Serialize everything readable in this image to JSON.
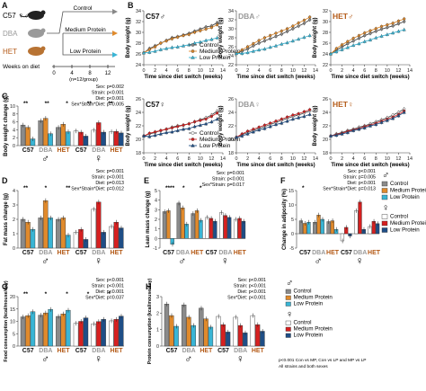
{
  "colors": {
    "control": "#8a8a8a",
    "control_female": "#ffffff",
    "medium": "#e08a2c",
    "medium_female": "#d62020",
    "low": "#39b5d5",
    "low_female": "#1f4e86",
    "c57_text": "#111111",
    "dba_text": "#9a9a9a",
    "het_text": "#b45a17",
    "c57_mouse": "#222222",
    "dba_mouse": "#9a9a9a",
    "het_mouse": "#b87333"
  },
  "panelA": {
    "letter": "A",
    "strains": [
      "C57",
      "DBA",
      "HET"
    ],
    "diets": [
      "Control",
      "Medium Protein",
      "Low Protein"
    ],
    "x_label": "Weeks on diet",
    "ticks": [
      "0",
      "4",
      "8",
      "12"
    ],
    "n_label": "(n=12/group)"
  },
  "panelB": {
    "letter": "B",
    "x_label": "Time since diet switch (weeks)",
    "y_label": "Body weight (g)",
    "legend": [
      "Control",
      "Medium Protein",
      "Low Protein"
    ],
    "x_ticks": [
      "0",
      "2",
      "4",
      "6",
      "8",
      "10",
      "12",
      "14"
    ],
    "subplots": [
      {
        "title": "C57♂",
        "title_color": "#111111",
        "ylim": [
          24,
          34
        ],
        "yticks": [
          "24",
          "26",
          "28",
          "30",
          "32",
          "34"
        ],
        "control": [
          26.2,
          27,
          27.5,
          28,
          28.5,
          29,
          29.2,
          29.5,
          29.8,
          30.2,
          30.6,
          31,
          31.2,
          31.8
        ],
        "medium": [
          26.2,
          26.8,
          27.3,
          28,
          28.4,
          28.8,
          29.1,
          29.4,
          29.6,
          30,
          30.3,
          30.6,
          30.9,
          31.4
        ],
        "low": [
          26.2,
          26.3,
          26.5,
          26.8,
          27,
          27.2,
          27.3,
          27.5,
          27.7,
          28,
          28.2,
          28.5,
          28.7,
          29
        ]
      },
      {
        "title": "DBA♂",
        "title_color": "#9a9a9a",
        "ylim": [
          22,
          34
        ],
        "yticks": [
          "22",
          "24",
          "26",
          "28",
          "30",
          "32",
          "34"
        ],
        "control": [
          24.5,
          25,
          25.5,
          26.2,
          26.8,
          27.3,
          27.8,
          28.3,
          28.8,
          29.4,
          30,
          30.6,
          31.2,
          32
        ],
        "medium": [
          24.5,
          25.3,
          26,
          26.7,
          27.4,
          28,
          28.5,
          29,
          29.5,
          30,
          30.6,
          31.3,
          31.9,
          32.6
        ],
        "low": [
          24.5,
          24.5,
          24.7,
          25,
          25.3,
          25.5,
          25.9,
          26.2,
          26.6,
          26.9,
          27.3,
          27.7,
          28.1,
          28.5
        ]
      },
      {
        "title": "HET♂",
        "title_color": "#b45a17",
        "ylim": [
          22,
          32
        ],
        "yticks": [
          "22",
          "24",
          "26",
          "28",
          "30",
          "32"
        ],
        "control": [
          24,
          24.7,
          25.3,
          25.9,
          26.4,
          26.9,
          27.4,
          27.8,
          28.2,
          28.6,
          28.9,
          29.2,
          29.6,
          30
        ],
        "medium": [
          24,
          25,
          25.7,
          26.3,
          26.9,
          27.4,
          27.9,
          28.3,
          28.7,
          29.1,
          29.4,
          29.7,
          30.1,
          30.5
        ],
        "low": [
          24,
          24.4,
          24.8,
          25.2,
          25.6,
          25.9,
          26.3,
          26.6,
          27,
          27.3,
          27.6,
          27.9,
          28.2,
          28.5
        ]
      },
      {
        "title": "C57♀",
        "title_color": "#111111",
        "ylim": [
          18,
          26
        ],
        "yticks": [
          "18",
          "20",
          "22",
          "24",
          "26"
        ],
        "control": [
          20.5,
          20.8,
          21,
          21.3,
          21.5,
          21.8,
          22,
          22.1,
          22.3,
          22.6,
          22.9,
          23.2,
          23.6,
          24.2
        ],
        "medium": [
          20.5,
          20.9,
          21.1,
          21.3,
          21.5,
          21.7,
          21.9,
          22.1,
          22.3,
          22.6,
          22.8,
          23,
          23.4,
          23.9
        ],
        "low": [
          20.5,
          20.4,
          20.6,
          20.8,
          21,
          21.1,
          21.3,
          21.5,
          21.6,
          21.9,
          22.1,
          22.3,
          22.6,
          23
        ]
      },
      {
        "title": "DBA♀",
        "title_color": "#9a9a9a",
        "ylim": [
          18,
          26
        ],
        "yticks": [
          "18",
          "20",
          "22",
          "24",
          "26"
        ],
        "control": [
          20.3,
          20.7,
          21,
          21.3,
          21.6,
          21.9,
          22.2,
          22.5,
          22.8,
          23.1,
          23.4,
          23.6,
          23.9,
          24.2
        ],
        "medium": [
          20.3,
          20.8,
          21.2,
          21.5,
          21.8,
          22.1,
          22.4,
          22.7,
          23,
          23.3,
          23.6,
          23.8,
          24.1,
          24.4
        ],
        "low": [
          20.3,
          20.5,
          20.8,
          21.1,
          21.4,
          21.6,
          21.9,
          22.2,
          22.4,
          22.7,
          23,
          23.2,
          23.4,
          23.7
        ]
      },
      {
        "title": "HET♀",
        "title_color": "#b45a17",
        "ylim": [
          18,
          26
        ],
        "yticks": [
          "18",
          "20",
          "22",
          "24",
          "26"
        ],
        "control": [
          20.5,
          20.8,
          21,
          21.3,
          21.5,
          21.8,
          22,
          22.3,
          22.6,
          22.9,
          23.2,
          23.6,
          24,
          24.5
        ],
        "medium": [
          20.5,
          20.7,
          20.9,
          21.2,
          21.4,
          21.6,
          21.9,
          22.1,
          22.4,
          22.7,
          23,
          23.3,
          23.7,
          24.2
        ],
        "low": [
          20.5,
          20.6,
          20.8,
          21,
          21.3,
          21.5,
          21.7,
          22,
          22.2,
          22.5,
          22.8,
          23.1,
          23.5,
          24
        ]
      }
    ]
  },
  "panelC": {
    "letter": "C",
    "y_label": "Body weight change (g)",
    "ylim": [
      0,
      10
    ],
    "yticks": [
      "0",
      "2",
      "4",
      "6",
      "8",
      "10"
    ],
    "stats": [
      "Sex: p=0.002",
      "Strain: p<0.001",
      "Diet: p<0.001",
      "Sex*Strain*Diet: p=0.005"
    ],
    "male": [
      [
        5.2,
        4.6,
        1.7
      ],
      [
        6.3,
        6.9,
        3.0
      ],
      [
        4.6,
        5.4,
        3.5
      ]
    ],
    "female": [
      [
        3.7,
        3.4,
        2.4
      ],
      [
        3.9,
        5.8,
        3.4
      ],
      [
        3.5,
        3.6,
        3.2
      ]
    ],
    "sig": [
      "**",
      "**",
      "*",
      "**",
      "**"
    ]
  },
  "panelD": {
    "letter": "D",
    "y_label": "Fat mass change (g)",
    "ylim": [
      0,
      4
    ],
    "yticks": [
      "0",
      "1",
      "2",
      "3",
      "4"
    ],
    "stats": [
      "Sex: p=0.001",
      "Strain: p<0.001",
      "Diet: p=0.013",
      "Sex*Strain*Diet: p=0.012"
    ],
    "male": [
      [
        2.0,
        1.8,
        1.3
      ],
      [
        2.1,
        3.3,
        2.1
      ],
      [
        2.0,
        2.1,
        0.9
      ]
    ],
    "female": [
      [
        1.1,
        1.3,
        0.6
      ],
      [
        2.7,
        3.2,
        1.1
      ],
      [
        1.5,
        1.8,
        1.4
      ]
    ],
    "sig": [
      "**",
      "*",
      "**"
    ]
  },
  "panelE": {
    "letter": "E",
    "y_label": "Lean mass change (g)",
    "ylim": [
      -1,
      5
    ],
    "yticks": [
      "-1",
      "0",
      "1",
      "2",
      "3",
      "4",
      "5"
    ],
    "stats": [
      "Sex: p=0.001",
      "Strain: p<0.001",
      "Sex*Strain: p=0.017"
    ],
    "male": [
      [
        2.8,
        2.9,
        -0.6
      ],
      [
        3.7,
        3.2,
        1.5
      ],
      [
        2.6,
        2.9,
        1.9
      ]
    ],
    "female": [
      [
        2.2,
        2.1,
        1.8
      ],
      [
        2.7,
        2.4,
        2.2
      ],
      [
        2.0,
        2.1,
        1.8
      ]
    ],
    "sig": [
      "****",
      "*",
      "*"
    ]
  },
  "panelF": {
    "letter": "F",
    "y_label": "Change in adiposity (%)",
    "ylim": [
      -5,
      15
    ],
    "yticks": [
      "-5",
      "0",
      "5",
      "10",
      "15"
    ],
    "stats": [
      "Sex: p<0.001",
      "Strain: p=0.005",
      "Diet: p<0.001",
      "Sex*Strain*Diet: p=0.013"
    ],
    "male": [
      [
        4.5,
        3.6,
        4.0
      ],
      [
        4.0,
        6.5,
        5.0
      ],
      [
        4.2,
        4.5,
        1.5
      ]
    ],
    "female": [
      [
        -2.5,
        2.2,
        -0.8
      ],
      [
        8.0,
        11.0,
        1.5
      ],
      [
        2.5,
        4.3,
        3.5
      ]
    ],
    "sig": [
      "*"
    ]
  },
  "panelG": {
    "letter": "G",
    "y_label": "Food consumption (kcal/mouse/day)",
    "ylim": [
      0,
      20
    ],
    "yticks": [
      "0",
      "5",
      "10",
      "15",
      "20"
    ],
    "stats": [
      "Sex: p<0.001",
      "Strain: p<0.001",
      "Diet: p<0.001",
      "Sex*Diet: p=0.037"
    ],
    "male": [
      [
        11.8,
        12.3,
        13.9
      ],
      [
        12.5,
        13.4,
        14.8
      ],
      [
        12.0,
        13.0,
        14.5
      ]
    ],
    "female": [
      [
        9.2,
        10.0,
        11.4
      ],
      [
        9.0,
        9.9,
        10.8
      ],
      [
        10.2,
        10.8,
        12.1
      ]
    ],
    "sig": [
      "**",
      "*",
      "*",
      "*",
      "*"
    ]
  },
  "panelH": {
    "letter": "H",
    "y_label": "Protein consumption (kcal/mouse/day)",
    "ylim": [
      0,
      3
    ],
    "yticks": [
      "0",
      "1",
      "2",
      "3"
    ],
    "stats": [
      "Sex: p<0.001",
      "Strain: p<0.001",
      "Diet: p<0.001",
      "Sex*Diet: p<0.001"
    ],
    "male": [
      [
        2.55,
        1.85,
        1.2
      ],
      [
        2.5,
        1.75,
        1.25
      ],
      [
        2.3,
        1.65,
        1.15
      ]
    ],
    "female": [
      [
        1.8,
        1.3,
        0.85
      ],
      [
        1.75,
        1.25,
        0.8
      ],
      [
        1.85,
        1.3,
        0.9
      ]
    ]
  },
  "bar_axis": {
    "strains": [
      "C57",
      "DBA",
      "HET"
    ],
    "male_symbol": "♂",
    "female_symbol": "♀"
  },
  "legend_right": {
    "male_symbol": "♂",
    "female_symbol": "♀",
    "items": [
      "Control",
      "Medium Protein",
      "Low Protein"
    ],
    "note_lines": [
      "p<0.001 Con vs MP, Con vs LP and MP vs LP",
      "All strains and both sexes"
    ]
  },
  "chart_data": [
    {
      "type": "line",
      "panel": "B",
      "x": [
        0,
        1,
        2,
        3,
        4,
        5,
        6,
        7,
        8,
        9,
        10,
        11,
        12,
        13
      ],
      "xlabel": "Time since diet switch (weeks)",
      "ylabel": "Body weight (g)",
      "series_names": [
        "Control",
        "Medium Protein",
        "Low Protein"
      ]
    },
    {
      "type": "bar",
      "panel": "C",
      "categories": [
        "C57♂",
        "DBA♂",
        "HET♂",
        "C57♀",
        "DBA♀",
        "HET♀"
      ],
      "ylabel": "Body weight change (g)"
    },
    {
      "type": "bar",
      "panel": "D",
      "categories": [
        "C57♂",
        "DBA♂",
        "HET♂",
        "C57♀",
        "DBA♀",
        "HET♀"
      ],
      "ylabel": "Fat mass change (g)"
    },
    {
      "type": "bar",
      "panel": "E",
      "categories": [
        "C57♂",
        "DBA♂",
        "HET♂",
        "C57♀",
        "DBA♀",
        "HET♀"
      ],
      "ylabel": "Lean mass change (g)"
    },
    {
      "type": "bar",
      "panel": "F",
      "categories": [
        "C57♂",
        "DBA♂",
        "HET♂",
        "C57♀",
        "DBA♀",
        "HET♀"
      ],
      "ylabel": "Change in adiposity (%)"
    },
    {
      "type": "bar",
      "panel": "G",
      "categories": [
        "C57♂",
        "DBA♂",
        "HET♂",
        "C57♀",
        "DBA♀",
        "HET♀"
      ],
      "ylabel": "Food consumption (kcal/mouse/day)"
    },
    {
      "type": "bar",
      "panel": "H",
      "categories": [
        "C57♂",
        "DBA♂",
        "HET♂",
        "C57♀",
        "DBA♀",
        "HET♀"
      ],
      "ylabel": "Protein consumption (kcal/mouse/day)"
    }
  ]
}
